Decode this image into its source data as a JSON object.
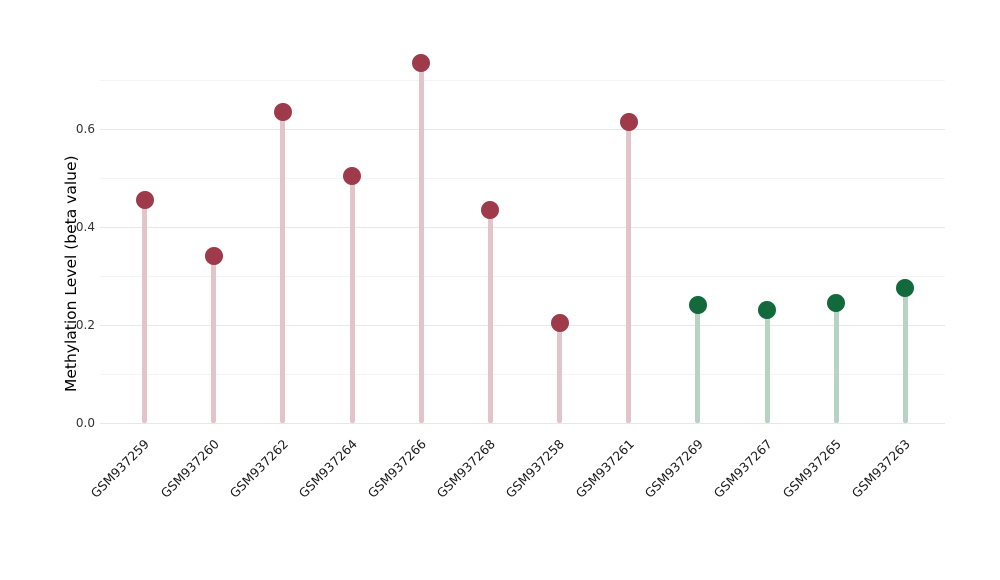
{
  "chart_data": {
    "type": "lollipop",
    "title": "",
    "xlabel": "",
    "ylabel": "Methylation Level (beta value)",
    "ylim": [
      0,
      0.75
    ],
    "yticks": [
      {
        "label": "0.0",
        "value": 0.0
      },
      {
        "label": "0.2",
        "value": 0.2
      },
      {
        "label": "0.4",
        "value": 0.4
      },
      {
        "label": "0.6",
        "value": 0.6
      }
    ],
    "minor_gridlines": [
      0.1,
      0.3,
      0.5,
      0.7
    ],
    "grid": "horizontal",
    "legend": "none",
    "categories": [
      "GSM937259",
      "GSM937260",
      "GSM937262",
      "GSM937264",
      "GSM937266",
      "GSM937268",
      "GSM937258",
      "GSM937261",
      "GSM937269",
      "GSM937267",
      "GSM937265",
      "GSM937263"
    ],
    "values": [
      0.455,
      0.34,
      0.635,
      0.505,
      0.735,
      0.435,
      0.205,
      0.615,
      0.24,
      0.23,
      0.245,
      0.275
    ],
    "groups": [
      "red",
      "red",
      "red",
      "red",
      "red",
      "red",
      "red",
      "red",
      "green",
      "green",
      "green",
      "green"
    ],
    "group_styles": {
      "red": {
        "dot_color": "#9e3a4a",
        "stem_color": "#e2c4ca"
      },
      "green": {
        "dot_color": "#11693c",
        "stem_color": "#b7d3c4"
      }
    }
  }
}
